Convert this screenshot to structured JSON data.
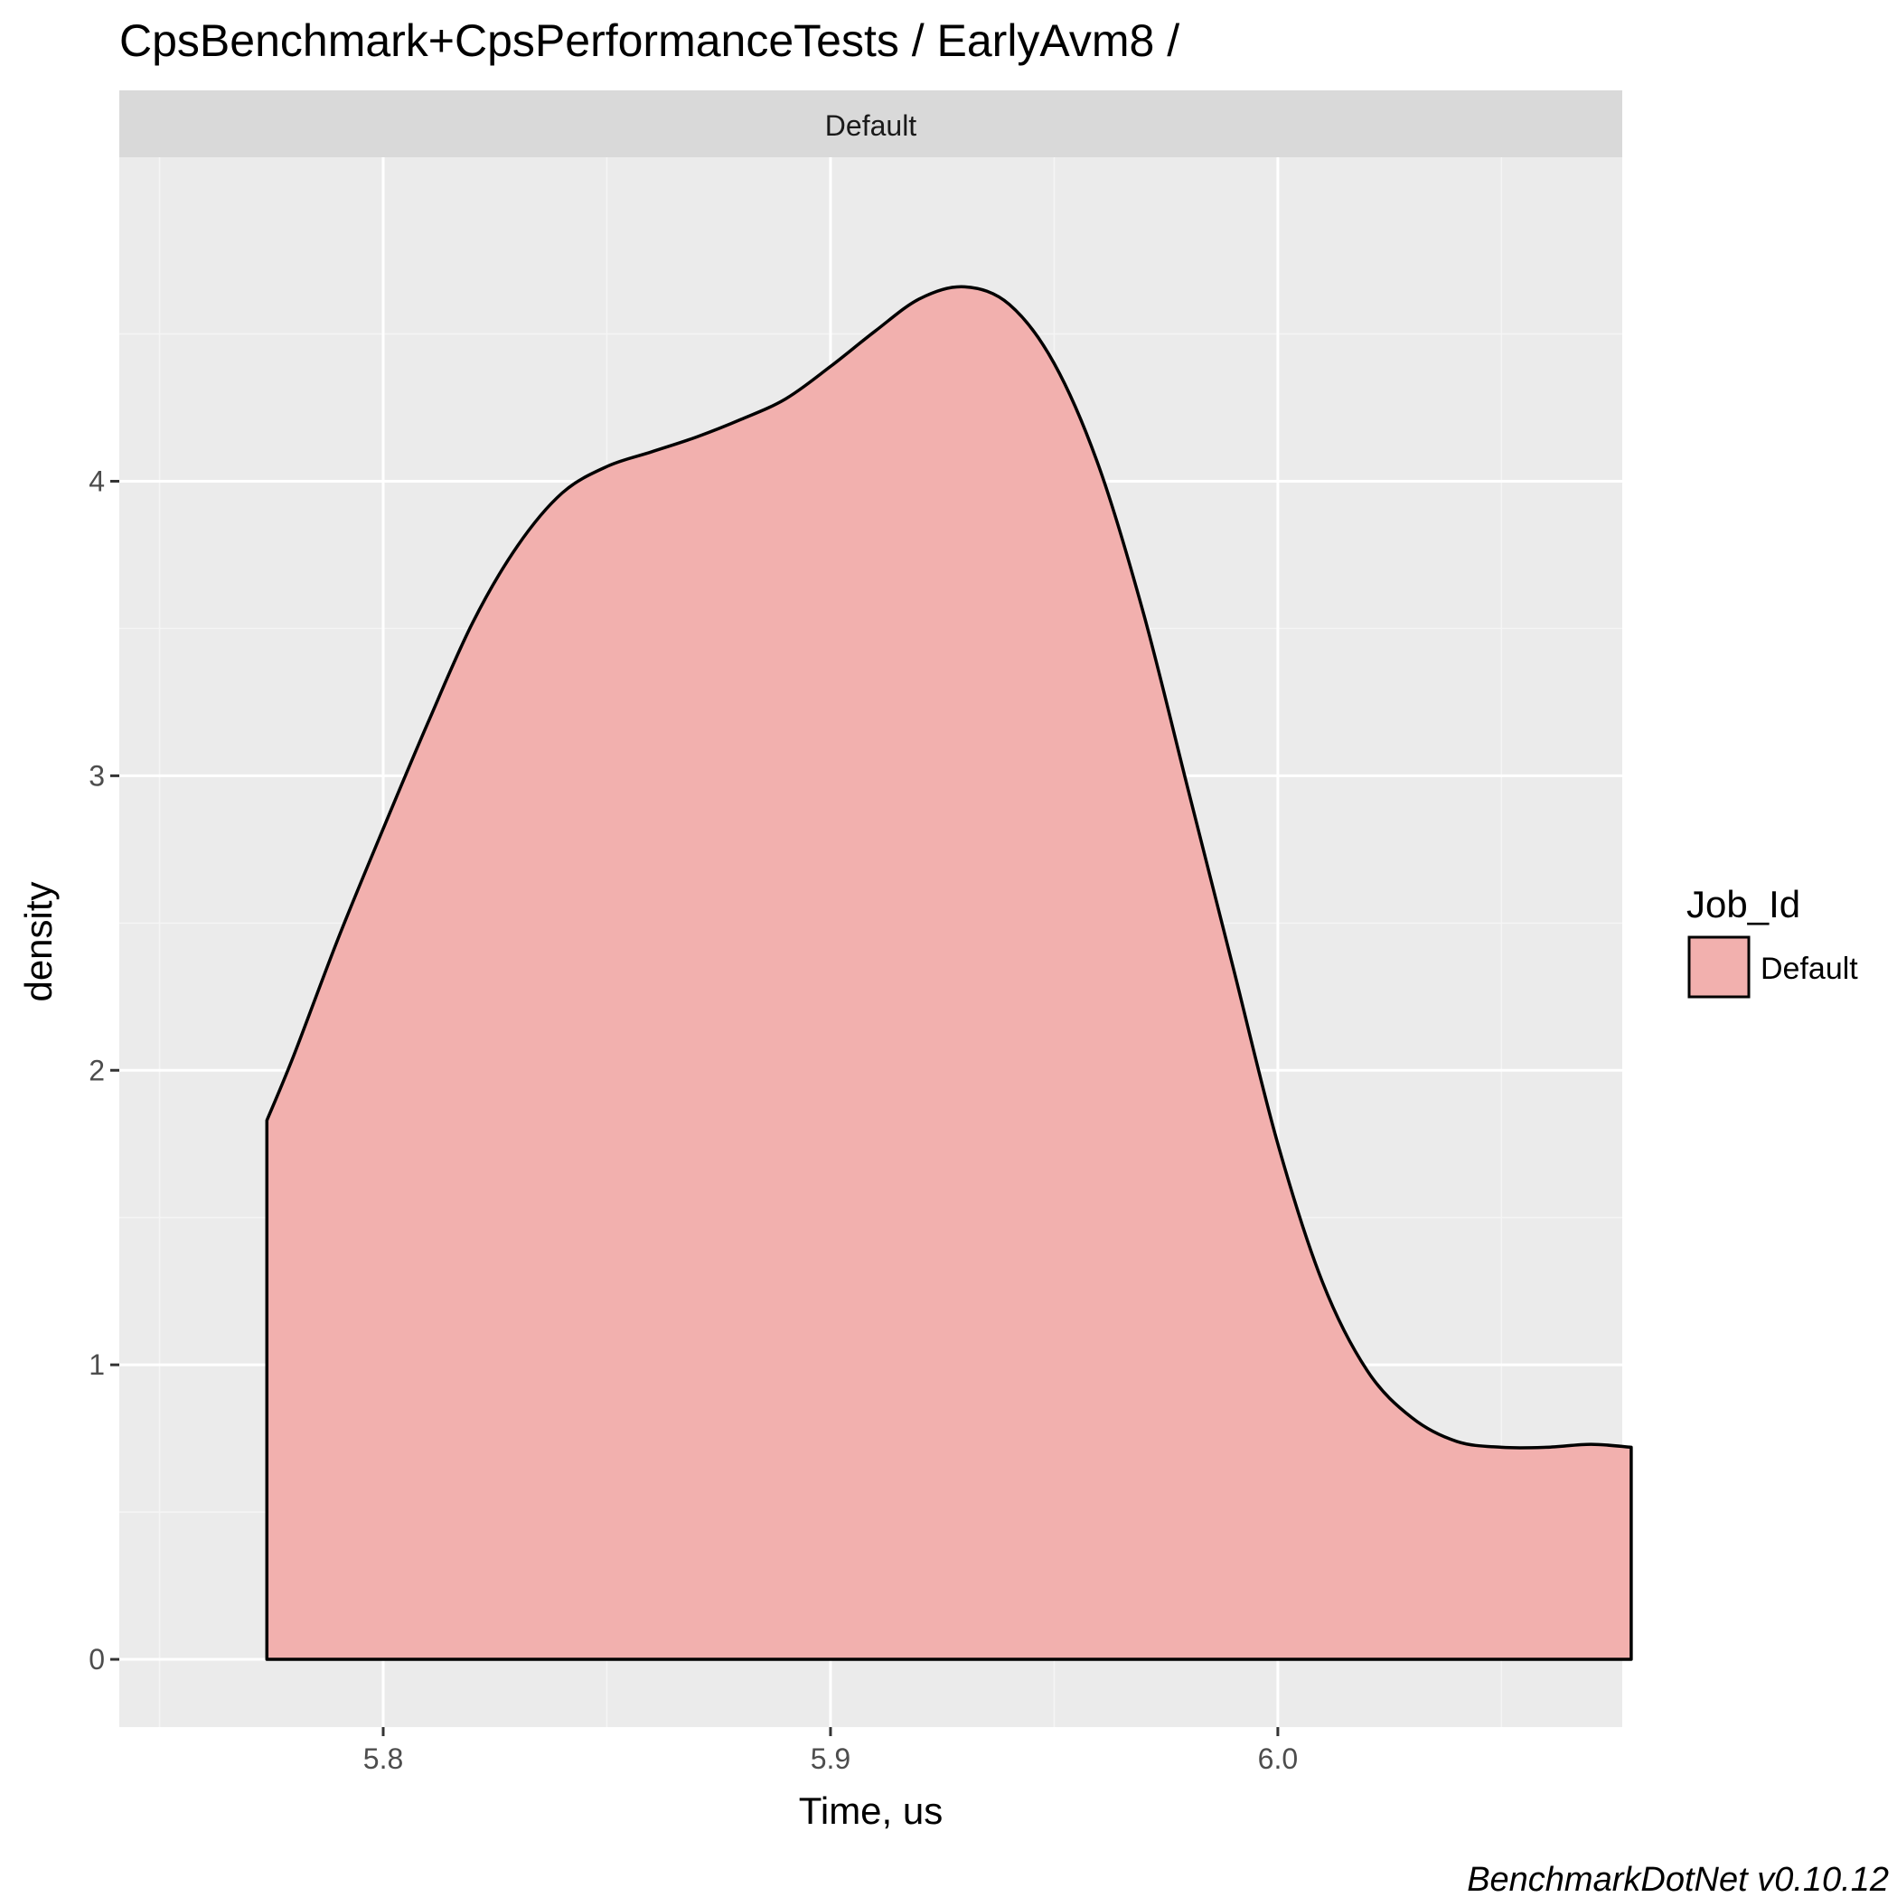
{
  "chart_data": {
    "type": "area",
    "title": "CpsBenchmark+CpsPerformanceTests / EarlyAvm8 /",
    "facet": "Default",
    "xlabel": "Time, us",
    "ylabel": "density",
    "xlim": [
      5.741,
      6.077
    ],
    "ylim": [
      -0.23,
      5.1
    ],
    "xticks": [
      5.8,
      5.9,
      6.0
    ],
    "xtick_labels": [
      "5.8",
      "5.9",
      "6.0"
    ],
    "yticks": [
      0,
      1,
      2,
      3,
      4
    ],
    "ytick_labels": [
      "0",
      "1",
      "2",
      "3",
      "4"
    ],
    "grid": true,
    "legend": {
      "title": "Job_Id",
      "position": "right",
      "entries": [
        {
          "label": "Default",
          "color": "#f2b0ae"
        }
      ]
    },
    "series": [
      {
        "name": "Default",
        "fill": "#f2b0ae",
        "stroke": "#000000",
        "x": [
          5.774,
          5.78,
          5.79,
          5.8,
          5.81,
          5.82,
          5.83,
          5.84,
          5.85,
          5.86,
          5.87,
          5.88,
          5.89,
          5.9,
          5.91,
          5.92,
          5.93,
          5.94,
          5.95,
          5.96,
          5.97,
          5.98,
          5.99,
          6.0,
          6.01,
          6.02,
          6.03,
          6.04,
          6.05,
          6.06,
          6.07,
          6.079
        ],
        "y": [
          1.83,
          2.05,
          2.45,
          2.82,
          3.18,
          3.52,
          3.78,
          3.96,
          4.05,
          4.1,
          4.15,
          4.21,
          4.28,
          4.39,
          4.51,
          4.62,
          4.66,
          4.6,
          4.4,
          4.05,
          3.55,
          2.95,
          2.35,
          1.75,
          1.28,
          0.98,
          0.82,
          0.74,
          0.72,
          0.72,
          0.73,
          0.72
        ]
      }
    ]
  },
  "caption": "BenchmarkDotNet v0.10.12",
  "colors": {
    "panel_bg": "#ebebeb",
    "strip_bg": "#d9d9d9",
    "grid_major": "#ffffff",
    "grid_minor": "#f5f5f5"
  }
}
